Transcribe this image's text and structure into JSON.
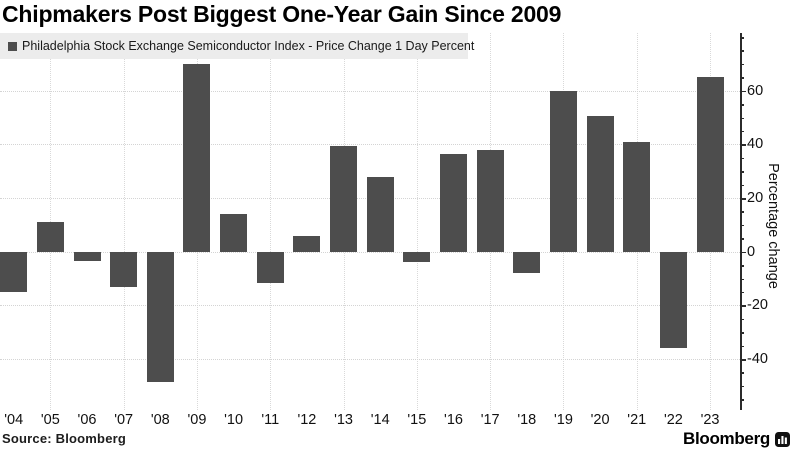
{
  "title": "Chipmakers Post Biggest One-Year Gain Since 2009",
  "legend": {
    "label": "Philadelphia Stock Exchange Semiconductor Index - Price Change 1 Day Percent",
    "marker_color": "#4d4d4d"
  },
  "source_note": "Source: Bloomberg",
  "brand": {
    "logo_text": "Bloomberg"
  },
  "colors": {
    "bar": "#4d4d4d",
    "axis": "#2b2b2b",
    "grid": "#d6d6d6",
    "legend_bg": "#ececec",
    "text": "#111111"
  },
  "chart_data": {
    "type": "bar",
    "title": "Chipmakers Post Biggest One-Year Gain Since 2009",
    "series_name": "Philadelphia Stock Exchange Semiconductor Index - Price Change 1 Day Percent",
    "categories": [
      "'04",
      "'05",
      "'06",
      "'07",
      "'08",
      "'09",
      "'10",
      "'11",
      "'12",
      "'13",
      "'14",
      "'15",
      "'16",
      "'17",
      "'18",
      "'19",
      "'20",
      "'21",
      "'22",
      "'23"
    ],
    "values": [
      -15,
      11,
      -3.5,
      -13,
      -48.5,
      70,
      14,
      -11.5,
      6,
      39.5,
      28,
      -4,
      36.5,
      38,
      -8,
      60,
      50.5,
      41,
      -36,
      65
    ],
    "xlabel": "",
    "ylabel": "Percentage change",
    "ylim": [
      -59,
      81.5
    ],
    "y_major_ticks": [
      60,
      40,
      20,
      0,
      -20,
      -40
    ],
    "y_minor_tick_step": 5,
    "grid": "dotted",
    "vertical_gridlines_on_categories": [
      "'05",
      "'07",
      "'09",
      "'11",
      "'13",
      "'15",
      "'17",
      "'19",
      "'21",
      "'23"
    ],
    "legend_position": "top-left",
    "axis_side": "right"
  }
}
